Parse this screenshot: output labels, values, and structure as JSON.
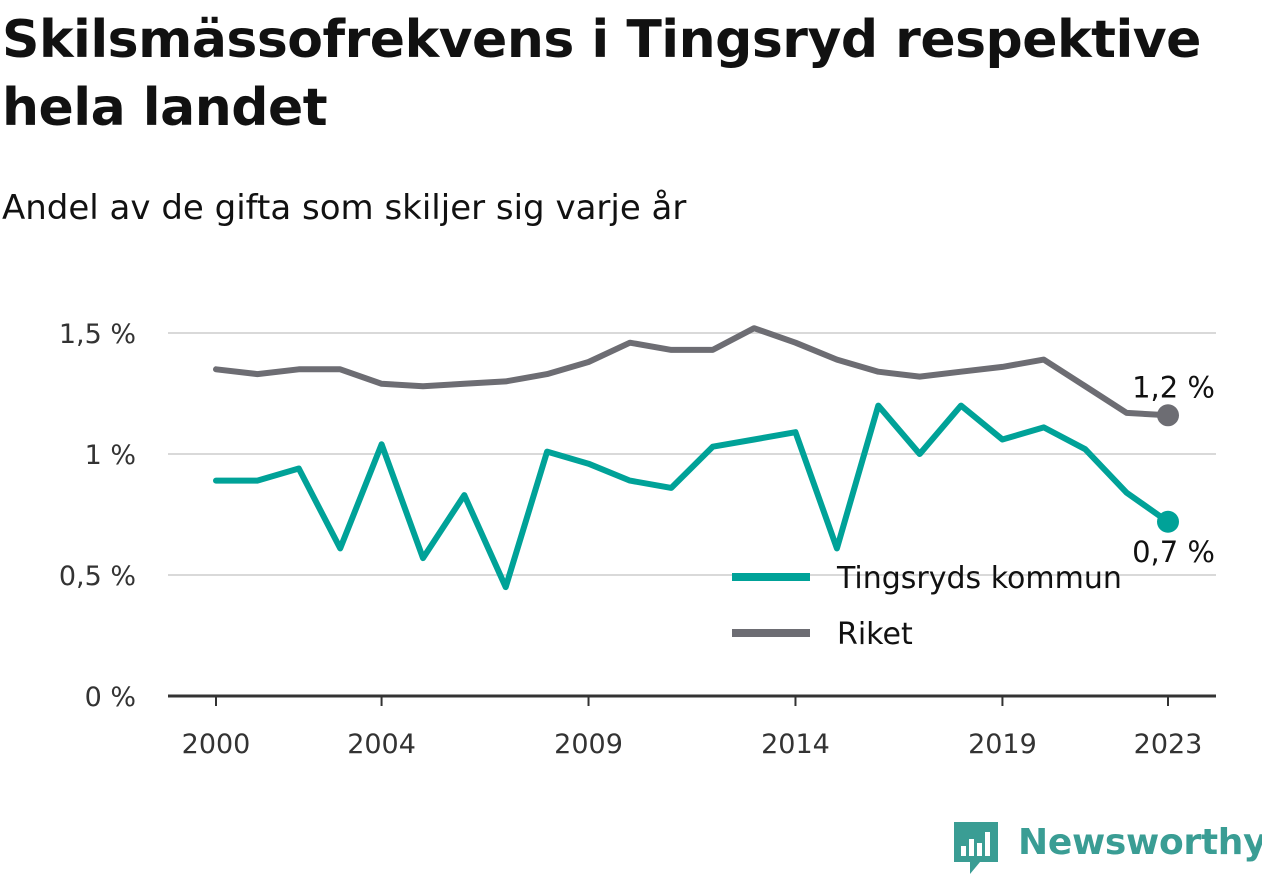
{
  "title": "Skilsmässofrekvens i Tingsryd respektive hela landet",
  "subtitle": "Andel av de gifta som skiljer sig varje år",
  "brand": {
    "name": "Newsworthy",
    "color": "#3a9d94",
    "icon": "bar-chart-speech-bubble-icon"
  },
  "chart_data": {
    "type": "line",
    "x": [
      2000,
      2001,
      2002,
      2003,
      2004,
      2005,
      2006,
      2007,
      2008,
      2009,
      2010,
      2011,
      2012,
      2013,
      2014,
      2015,
      2016,
      2017,
      2018,
      2019,
      2020,
      2021,
      2022,
      2023
    ],
    "x_ticks": [
      2000,
      2004,
      2009,
      2014,
      2019,
      2023
    ],
    "x_tick_labels": [
      "2000",
      "2004",
      "2009",
      "2014",
      "2019",
      "2023"
    ],
    "ylim": [
      0,
      1.5
    ],
    "y_ticks": [
      0,
      0.5,
      1,
      1.5
    ],
    "y_tick_labels": [
      "0 %",
      "0,5 %",
      "1 %",
      "1,5 %"
    ],
    "grid": true,
    "legend_position": "bottom-right",
    "series": [
      {
        "name": "Tingsryds kommun",
        "color": "#00a298",
        "values": [
          0.89,
          0.89,
          0.94,
          0.61,
          1.04,
          0.57,
          0.83,
          0.45,
          1.01,
          0.96,
          0.89,
          0.86,
          1.03,
          1.06,
          1.09,
          0.61,
          1.2,
          1.0,
          1.2,
          1.06,
          1.11,
          1.02,
          0.84,
          0.72
        ],
        "end_label": "0,7 %"
      },
      {
        "name": "Riket",
        "color": "#6d6d73",
        "values": [
          1.35,
          1.33,
          1.35,
          1.35,
          1.29,
          1.28,
          1.29,
          1.3,
          1.33,
          1.38,
          1.46,
          1.43,
          1.43,
          1.52,
          1.46,
          1.39,
          1.34,
          1.32,
          1.34,
          1.36,
          1.39,
          1.28,
          1.17,
          1.16
        ],
        "end_label": "1,2 %"
      }
    ]
  }
}
